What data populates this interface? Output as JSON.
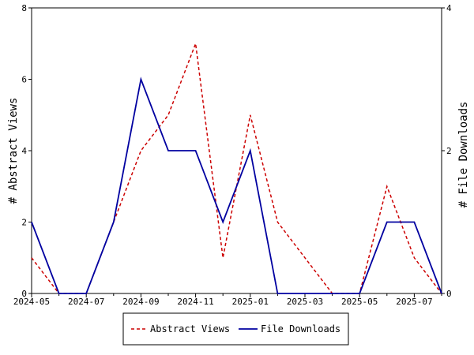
{
  "chart_data": {
    "type": "line",
    "x": [
      "2024-05",
      "2024-06",
      "2024-07",
      "2024-08",
      "2024-09",
      "2024-10",
      "2024-11",
      "2024-12",
      "2025-01",
      "2025-02",
      "2025-03",
      "2025-04",
      "2025-05",
      "2025-06",
      "2025-07",
      "2025-08"
    ],
    "x_tick_labels": [
      "2024-05",
      "2024-07",
      "2024-09",
      "2024-11",
      "2025-01",
      "2025-03",
      "2025-05",
      "2025-07"
    ],
    "series": [
      {
        "name": "Abstract Views",
        "axis": "left",
        "color": "#cc0000",
        "dash": "dashed",
        "values": [
          1,
          0,
          0,
          2,
          4,
          5,
          7,
          1,
          5,
          2,
          1,
          0,
          0,
          3,
          1,
          0
        ]
      },
      {
        "name": "File Downloads",
        "axis": "right",
        "color": "#0000a0",
        "dash": "solid",
        "values": [
          1,
          0,
          0,
          1,
          3,
          2,
          2,
          1,
          2,
          0,
          0,
          0,
          0,
          1,
          1,
          0
        ]
      }
    ],
    "ylabel": "# Abstract Views",
    "ylabel_right": "# File Downloads",
    "ylim": [
      0,
      8
    ],
    "yticks": [
      0,
      2,
      4,
      6,
      8
    ],
    "ylim_right": [
      0,
      4
    ],
    "yticks_right": [
      0,
      2,
      4
    ],
    "grid": false,
    "legend_position": "bottom"
  }
}
